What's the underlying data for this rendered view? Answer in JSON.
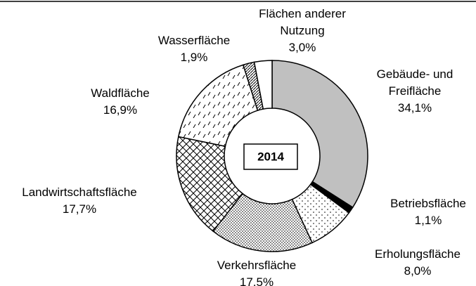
{
  "chart_data": {
    "type": "donut",
    "center_label": "2014",
    "categories": [
      "Gebäude- und Freifläche",
      "Betriebsfläche",
      "Erholungsfläche",
      "Verkehrsfläche",
      "Landwirtschaftsfläche",
      "Waldfläche",
      "Wasserfläche",
      "Flächen anderer Nutzung"
    ],
    "values": [
      34.1,
      1.1,
      8.0,
      17.5,
      17.7,
      16.9,
      1.9,
      3.0
    ],
    "value_labels": [
      "34,1%",
      "1,1%",
      "8,0%",
      "17,5%",
      "17,7%",
      "16,9%",
      "1,9%",
      "3,0%"
    ]
  }
}
